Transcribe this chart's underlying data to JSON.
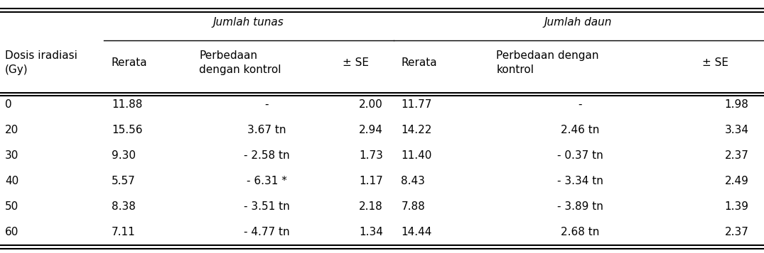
{
  "col_headers_top_tunas": "Jumlah tunas",
  "col_headers_top_daun": "Jumlah daun",
  "col_headers_mid": [
    "Dosis iradiasi\n(Gy)",
    "Rerata",
    "Perbedaan\ndengan kontrol",
    "± SE",
    "Rerata",
    "Perbedaan dengan\nkontrol",
    "± SE"
  ],
  "rows": [
    [
      "0",
      "11.88",
      "-",
      "2.00",
      "11.77",
      "-",
      "1.98"
    ],
    [
      "20",
      "15.56",
      "3.67 tn",
      "2.94",
      "14.22",
      "2.46 tn",
      "3.34"
    ],
    [
      "30",
      "9.30",
      "- 2.58 tn",
      "1.73",
      "11.40",
      "- 0.37 tn",
      "2.37"
    ],
    [
      "40",
      "5.57",
      "- 6.31 *",
      "1.17",
      "8.43",
      "- 3.34 tn",
      "2.49"
    ],
    [
      "50",
      "8.38",
      "- 3.51 tn",
      "2.18",
      "7.88",
      "- 3.89 tn",
      "1.39"
    ],
    [
      "60",
      "7.11",
      "- 4.77 tn",
      "1.34",
      "14.44",
      "2.68 tn",
      "2.37"
    ]
  ],
  "background_color": "#ffffff",
  "text_color": "#000000",
  "font_size": 11
}
